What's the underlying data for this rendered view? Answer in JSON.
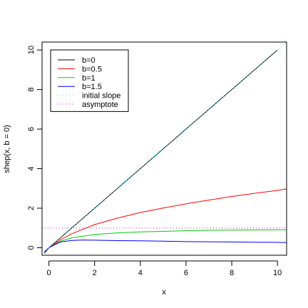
{
  "chart_data": {
    "type": "line",
    "title": "",
    "xlabel": "x",
    "ylabel": "shep(x, b = 0)",
    "xlim": [
      -0.3,
      10.4
    ],
    "ylim": [
      -0.38,
      10.4
    ],
    "x_ticks": [
      0,
      2,
      4,
      6,
      8,
      10
    ],
    "y_ticks": [
      0,
      2,
      4,
      6,
      8,
      10
    ],
    "grid": false,
    "legend_position": "top-left",
    "series": [
      {
        "name": "b=0",
        "color": "#000000",
        "style": "solid",
        "x": [
          -0.2,
          0,
          1,
          2,
          3,
          4,
          5,
          6,
          7,
          8,
          9,
          10
        ],
        "y": [
          -0.2,
          0,
          1,
          2,
          3,
          4,
          5,
          6,
          7,
          8,
          9,
          10
        ]
      },
      {
        "name": "b=0.5",
        "color": "#ff0000",
        "style": "solid",
        "x": [
          -0.2,
          0,
          0.5,
          1,
          2,
          3,
          4,
          5,
          6,
          7,
          8,
          9,
          10,
          10.4
        ],
        "y": [
          -0.22,
          0,
          0.4,
          0.71,
          1.17,
          1.5,
          1.78,
          2.01,
          2.22,
          2.41,
          2.59,
          2.75,
          2.9,
          2.98
        ]
      },
      {
        "name": "b=1",
        "color": "#00cd00",
        "style": "solid",
        "x": [
          -0.2,
          0,
          0.5,
          1,
          2,
          3,
          4,
          5,
          6,
          7,
          8,
          9,
          10,
          10.4
        ],
        "y": [
          -0.25,
          0,
          0.33,
          0.5,
          0.67,
          0.75,
          0.8,
          0.83,
          0.86,
          0.88,
          0.89,
          0.9,
          0.91,
          0.91
        ]
      },
      {
        "name": "b=1.5",
        "color": "#0000ff",
        "style": "solid",
        "x": [
          -0.2,
          0,
          0.5,
          1,
          1.5,
          2,
          3,
          4,
          5,
          6,
          7,
          8,
          9,
          10,
          10.4
        ],
        "y": [
          -0.28,
          0,
          0.29,
          0.37,
          0.39,
          0.38,
          0.36,
          0.35,
          0.33,
          0.31,
          0.3,
          0.29,
          0.28,
          0.27,
          0.26
        ]
      },
      {
        "name": "initial slope",
        "color": "#00ffff",
        "style": "dotted",
        "x": [
          -0.3,
          10.4
        ],
        "y": [
          -0.3,
          10.4
        ]
      },
      {
        "name": "asymptote",
        "color": "#ff00ff",
        "style": "dotted",
        "x": [
          -0.3,
          10.4
        ],
        "y": [
          1,
          1
        ]
      }
    ]
  }
}
